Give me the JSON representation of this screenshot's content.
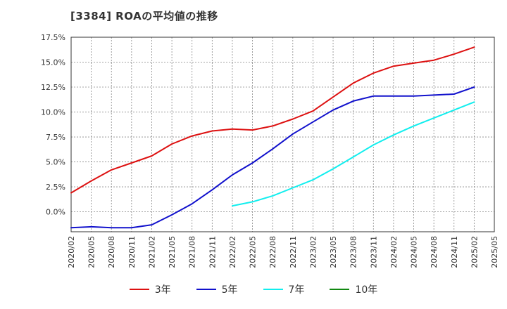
{
  "chart_data": {
    "type": "line",
    "title": "[3384]  ROAの平均値の推移",
    "ylim": [
      -2.0,
      17.5
    ],
    "yticks": [
      0,
      2.5,
      5,
      7.5,
      10,
      12.5,
      15,
      17.5
    ],
    "ytick_labels": [
      "0.0%",
      "2.5%",
      "5.0%",
      "7.5%",
      "10.0%",
      "12.5%",
      "15.0%",
      "17.5%"
    ],
    "xtick_labels": [
      "2020/02",
      "2020/05",
      "2020/08",
      "2020/11",
      "2021/02",
      "2021/05",
      "2021/08",
      "2021/11",
      "2022/02",
      "2022/05",
      "2022/08",
      "2022/11",
      "2023/02",
      "2023/05",
      "2023/08",
      "2023/11",
      "2024/02",
      "2024/05",
      "2024/08",
      "2024/11",
      "2025/02",
      "2025/05"
    ],
    "grid": true,
    "legend_position": "bottom",
    "series": [
      {
        "name": "3年",
        "color": "#dd1111",
        "points": [
          [
            "2020/02",
            1.9
          ],
          [
            "2020/05",
            3.1
          ],
          [
            "2020/08",
            4.2
          ],
          [
            "2020/11",
            4.9
          ],
          [
            "2021/02",
            5.6
          ],
          [
            "2021/05",
            6.8
          ],
          [
            "2021/08",
            7.6
          ],
          [
            "2021/11",
            8.1
          ],
          [
            "2022/02",
            8.3
          ],
          [
            "2022/05",
            8.2
          ],
          [
            "2022/08",
            8.6
          ],
          [
            "2022/11",
            9.3
          ],
          [
            "2023/02",
            10.1
          ],
          [
            "2023/05",
            11.5
          ],
          [
            "2023/08",
            12.9
          ],
          [
            "2023/11",
            13.9
          ],
          [
            "2024/02",
            14.6
          ],
          [
            "2024/05",
            14.9
          ],
          [
            "2024/08",
            15.2
          ],
          [
            "2024/11",
            15.8
          ],
          [
            "2025/02",
            16.5
          ]
        ]
      },
      {
        "name": "5年",
        "color": "#1111cc",
        "points": [
          [
            "2020/02",
            -1.6
          ],
          [
            "2020/05",
            -1.5
          ],
          [
            "2020/08",
            -1.6
          ],
          [
            "2020/11",
            -1.6
          ],
          [
            "2021/02",
            -1.3
          ],
          [
            "2021/05",
            -0.3
          ],
          [
            "2021/08",
            0.8
          ],
          [
            "2021/11",
            2.2
          ],
          [
            "2022/02",
            3.7
          ],
          [
            "2022/05",
            4.9
          ],
          [
            "2022/08",
            6.3
          ],
          [
            "2022/11",
            7.8
          ],
          [
            "2023/02",
            9.0
          ],
          [
            "2023/05",
            10.2
          ],
          [
            "2023/08",
            11.1
          ],
          [
            "2023/11",
            11.6
          ],
          [
            "2024/02",
            11.6
          ],
          [
            "2024/05",
            11.6
          ],
          [
            "2024/08",
            11.7
          ],
          [
            "2024/11",
            11.8
          ],
          [
            "2025/02",
            12.5
          ]
        ]
      },
      {
        "name": "7年",
        "color": "#11eeee",
        "points": [
          [
            "2022/02",
            0.6
          ],
          [
            "2022/05",
            1.0
          ],
          [
            "2022/08",
            1.6
          ],
          [
            "2022/11",
            2.4
          ],
          [
            "2023/02",
            3.2
          ],
          [
            "2023/05",
            4.3
          ],
          [
            "2023/08",
            5.5
          ],
          [
            "2023/11",
            6.7
          ],
          [
            "2024/02",
            7.7
          ],
          [
            "2024/05",
            8.6
          ],
          [
            "2024/08",
            9.4
          ],
          [
            "2024/11",
            10.2
          ],
          [
            "2025/02",
            11.0
          ]
        ]
      },
      {
        "name": "10年",
        "color": "#118811",
        "points": []
      }
    ]
  }
}
